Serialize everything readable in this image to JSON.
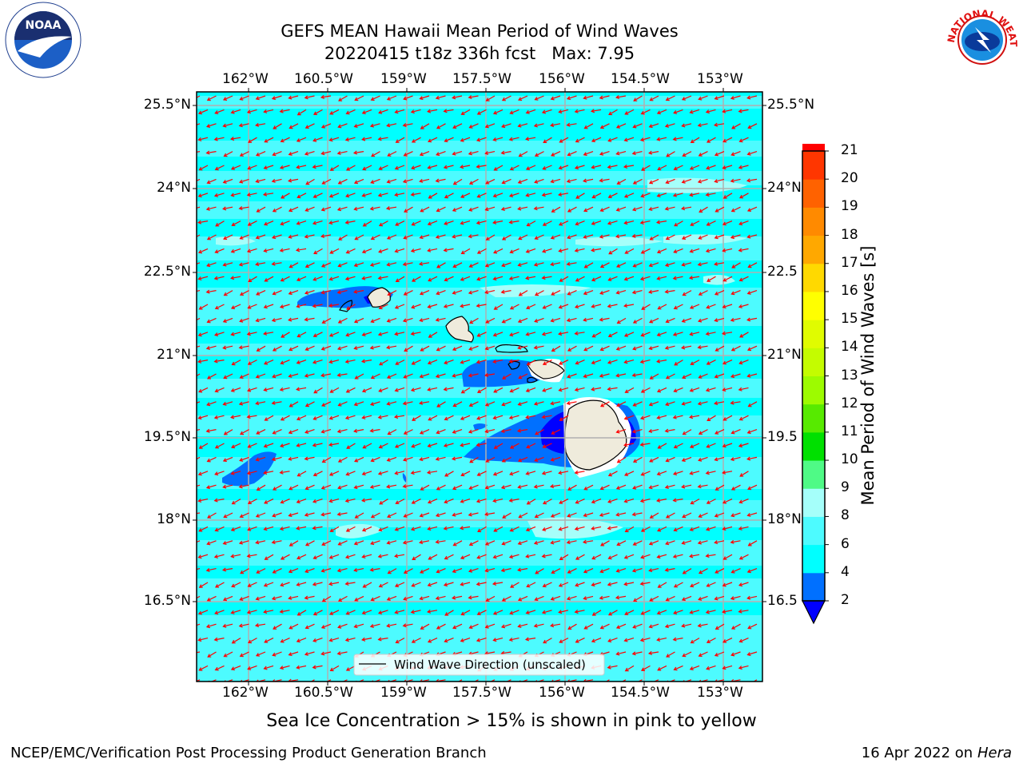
{
  "title": {
    "line1": "GEFS MEAN Hawaii Mean Period of Wind Waves",
    "line2": "20220415 t18z 336h fcst   Max: 7.95"
  },
  "map": {
    "lon_ticks": [
      "162°W",
      "160.5°W",
      "159°W",
      "157.5°W",
      "156°W",
      "154.5°W",
      "153°W"
    ],
    "lat_ticks_left": [
      "25.5°N",
      "24°N",
      "22.5°N",
      "21°N",
      "19.5°N",
      "18°N",
      "16.5°N"
    ],
    "lat_ticks_right": [
      "25.5°N",
      "24°N",
      "22.5",
      "21°N",
      "19.5",
      "18°N",
      "16.5"
    ],
    "legend_label": "Wind Wave Direction (unscaled)",
    "arrow_color": "#ff0000",
    "ocean_color": "#00ffff",
    "land_color": "#efebdc"
  },
  "colorbar": {
    "label": "Mean Period of Wind Waves [s]",
    "ticks": [
      "2",
      "4",
      "6",
      "8",
      "9",
      "10",
      "11",
      "12",
      "13",
      "14",
      "15",
      "16",
      "17",
      "18",
      "19",
      "20",
      "21"
    ],
    "colors": [
      "#0070ff",
      "#00ffff",
      "#4dfbff",
      "#a5fffa",
      "#4ffa86",
      "#00e000",
      "#57ea00",
      "#9dfb00",
      "#c4fc00",
      "#e0fc00",
      "#ffff00",
      "#ffd900",
      "#ffa800",
      "#ff8a00",
      "#ff6200",
      "#ff3600",
      "#ff0000"
    ],
    "under_color": "#0000ff"
  },
  "subnote": "Sea Ice Concentration > 15% is shown in pink to yellow",
  "footer": {
    "left": "NCEP/EMC/Verification Post Processing Product Generation Branch",
    "right_date": "16 Apr 2022 on ",
    "right_host": "Hera"
  },
  "logos": {
    "noaa_text": "NOAA",
    "nws_text": "NATIONAL WEATHER SERVICE"
  }
}
